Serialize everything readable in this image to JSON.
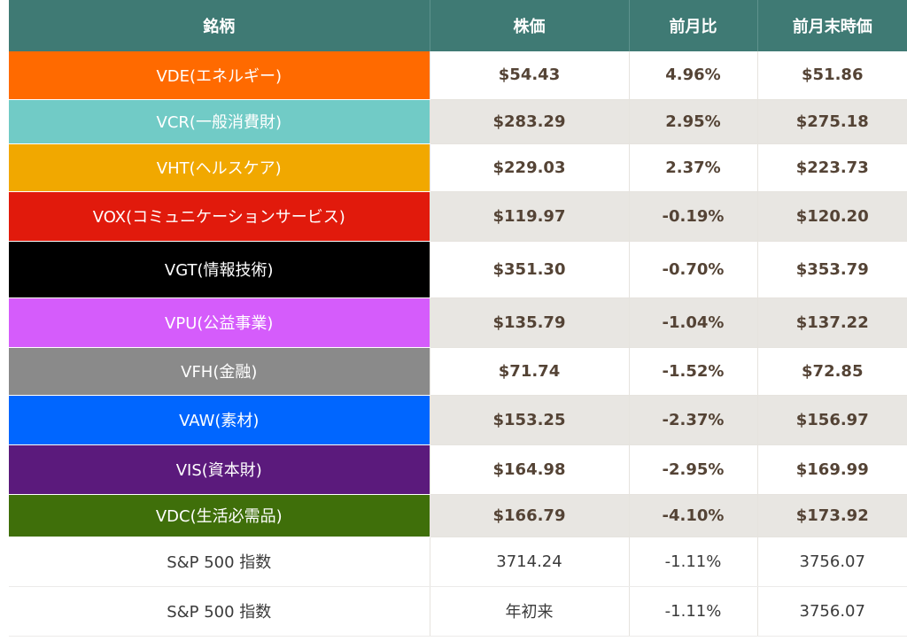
{
  "header": {
    "col1": "銘柄",
    "col2": "株価",
    "col3": "前月比",
    "col4": "前月末時価"
  },
  "rows": [
    {
      "name": "VDE(エネルギー)",
      "price": "$54.43",
      "change": "4.96%",
      "prev": "$51.86",
      "color": "#ff6a00"
    },
    {
      "name": "VCR(一般消費財)",
      "price": "$283.29",
      "change": "2.95%",
      "prev": "$275.18",
      "color": "#71cbc6"
    },
    {
      "name": "VHT(ヘルスケア)",
      "price": "$229.03",
      "change": "2.37%",
      "prev": "$223.73",
      "color": "#f1a800"
    },
    {
      "name": "VOX(コミュニケーションサービス)",
      "price": "$119.97",
      "change": "-0.19%",
      "prev": "$120.20",
      "color": "#e11a0c"
    },
    {
      "name": "VGT(情報技術)",
      "price": "$351.30",
      "change": "-0.70%",
      "prev": "$353.79",
      "color": "#000000"
    },
    {
      "name": "VPU(公益事業)",
      "price": "$135.79",
      "change": "-1.04%",
      "prev": "$137.22",
      "color": "#d55cfb"
    },
    {
      "name": "VFH(金融)",
      "price": "$71.74",
      "change": "-1.52%",
      "prev": "$72.85",
      "color": "#8a8a8a"
    },
    {
      "name": "VAW(素材)",
      "price": "$153.25",
      "change": "-2.37%",
      "prev": "$156.97",
      "color": "#0066ff"
    },
    {
      "name": "VIS(資本財)",
      "price": "$164.98",
      "change": "-2.95%",
      "prev": "$169.99",
      "color": "#5b1a7c"
    },
    {
      "name": "VDC(生活必需品)",
      "price": "$166.79",
      "change": "-4.10%",
      "prev": "$173.92",
      "color": "#3f6f0a"
    }
  ],
  "summary": [
    {
      "name": "S&P 500 指数",
      "price": "3714.24",
      "change": "-1.11%",
      "prev": "3756.07"
    },
    {
      "name": "S&P 500 指数",
      "price": "年初来",
      "change": "-1.11%",
      "prev": "3756.07"
    }
  ]
}
